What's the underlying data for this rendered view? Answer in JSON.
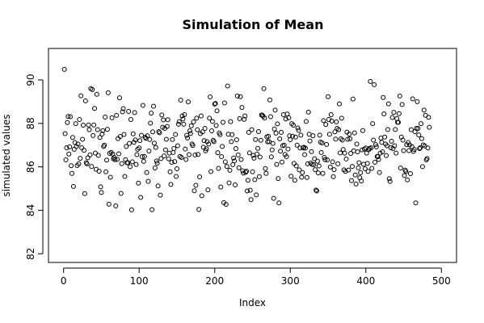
{
  "chart_data": {
    "type": "scatter",
    "title": "Simulation of Mean",
    "xlabel": "Index",
    "ylabel": "simulated values",
    "xlim": [
      0,
      500
    ],
    "ylim": [
      82,
      91
    ],
    "xticks": [
      0,
      100,
      200,
      300,
      400,
      500
    ],
    "yticks": [
      82,
      84,
      86,
      88,
      90
    ],
    "grid": false,
    "legend": "none",
    "series": [
      {
        "values": [
          90.49,
          87.53,
          86.32,
          86.88,
          88.04,
          88.32,
          86.59,
          86.92,
          88.31,
          86.05,
          85.7,
          87.35,
          85.1,
          86.81,
          87.12,
          87.99,
          86.94,
          86.06,
          87.05,
          86.14,
          88.18,
          86.39,
          89.27,
          86.88,
          87.27,
          87.92,
          86.76,
          84.77,
          89.04,
          86.19,
          86.14,
          86.42,
          87.93,
          87.71,
          86.55,
          89.6,
          86.02,
          89.56,
          87.44,
          87.93,
          88.69,
          86.63,
          85.89,
          89.34,
          87.71,
          86.53,
          85.8,
          87.35,
          85.08,
          84.82,
          87.51,
          87.67,
          86.94,
          87.0,
          88.29,
          85.77,
          86.31,
          87.73,
          89.41,
          84.28,
          86.62,
          85.52,
          86.66,
          88.26,
          86.59,
          86.37,
          86.43,
          86.33,
          84.2,
          88.37,
          86.34,
          87.3,
          86.6,
          89.18,
          87.4,
          84.78,
          86.15,
          88.53,
          88.68,
          87.49,
          85.56,
          86.33,
          86.94,
          86.19,
          86.19,
          88.55,
          87.08,
          86.01,
          88.18,
          84.02,
          86.23,
          87.52,
          87.13,
          88.5,
          87.24,
          86.11,
          86.56,
          86.81,
          85.25,
          86.87,
          87.21,
          84.59,
          87.45,
          86.47,
          88.83,
          86.25,
          86.48,
          87.36,
          87.31,
          85.74,
          87.43,
          85.33,
          86.73,
          87.26,
          88.01,
          88.47,
          84.03,
          87.61,
          88.79,
          87.09,
          85.95,
          86.89,
          86.27,
          86.17,
          85.12,
          87.62,
          87.57,
          84.7,
          86.38,
          88.39,
          87.82,
          88.16,
          86.5,
          87.77,
          86.78,
          87.27,
          87.86,
          88.17,
          86.37,
          86.63,
          85.77,
          85.19,
          86.21,
          87.26,
          86.66,
          86.84,
          86.24,
          87.49,
          85.56,
          85.91,
          86.97,
          87.96,
          88.08,
          86.48,
          89.07,
          86.43,
          88.34,
          88.2,
          87.96,
          88.4,
          86.82,
          86.34,
          87.45,
          87.33,
          88.99,
          86.56,
          87.66,
          87.54,
          87.89,
          87.05,
          86.98,
          88.07,
          84.9,
          86.55,
          85.15,
          88.24,
          87.71,
          86.57,
          84.04,
          85.54,
          87.53,
          88.34,
          84.67,
          87.61,
          86.9,
          87.21,
          87.77,
          86.74,
          86.83,
          87.16,
          84.94,
          87.05,
          88.24,
          89.22,
          85.78,
          87.66,
          88.09,
          87.22,
          87.16,
          88.89,
          88.92,
          87.9,
          88.58,
          86.65,
          85.93,
          87.56,
          87.48,
          85.07,
          86.47,
          86.94,
          88.05,
          84.35,
          88.94,
          86.23,
          84.27,
          86.02,
          89.72,
          87.5,
          85.26,
          85.84,
          88.08,
          87.16,
          87.48,
          86.1,
          86.41,
          86.27,
          85.17,
          86.84,
          87.25,
          89.26,
          86.55,
          85.96,
          88.22,
          89.23,
          86.34,
          88.73,
          85.82,
          85.71,
          88.19,
          88.34,
          85.75,
          85.8,
          84.89,
          85.38,
          87.59,
          86.64,
          84.92,
          84.49,
          87.71,
          85.77,
          86.53,
          86.4,
          85.41,
          87.26,
          84.71,
          86.59,
          86.85,
          87.62,
          85.55,
          86.45,
          87.22,
          88.39,
          88.38,
          88.33,
          89.6,
          88.25,
          85.92,
          85.7,
          87.38,
          87.15,
          87.41,
          87.16,
          89.08,
          88.31,
          86.46,
          86.78,
          87.08,
          84.55,
          87.74,
          88.61,
          87.55,
          86.11,
          87.98,
          85.46,
          84.34,
          87.29,
          86.72,
          87.59,
          86.22,
          86.97,
          88.4,
          87.0,
          86.57,
          88.2,
          86.47,
          88.43,
          86.82,
          88.26,
          87.43,
          87.25,
          85.57,
          87.99,
          87.41,
          87.92,
          86.16,
          85.38,
          87.37,
          86.04,
          87.0,
          87.79,
          87.68,
          85.86,
          86.87,
          87.46,
          85.52,
          85.74,
          86.87,
          86.9,
          86.56,
          86.86,
          88.09,
          85.51,
          86.14,
          88.52,
          87.5,
          87.19,
          86.17,
          86.7,
          86.11,
          87.43,
          86.1,
          86.37,
          85.87,
          84.93,
          84.89,
          86.26,
          85.72,
          86.04,
          87.46,
          87.14,
          86.66,
          87.1,
          85.7,
          88.13,
          86.43,
          86.33,
          87.95,
          87.03,
          86.32,
          89.23,
          88.18,
          87.5,
          85.99,
          88.4,
          88.11,
          86.23,
          85.55,
          85.87,
          87.61,
          87.28,
          88.07,
          87.77,
          86.14,
          87.71,
          88.9,
          86.64,
          87.29,
          88.24,
          87.23,
          86.8,
          85.86,
          86.63,
          85.79,
          86.36,
          87.6,
          87.27,
          85.85,
          87.51,
          87.29,
          86.62,
          85.37,
          86.02,
          89.12,
          86.74,
          87.56,
          85.63,
          85.21,
          87.05,
          86.69,
          85.96,
          86.19,
          85.5,
          85.73,
          85.35,
          86.78,
          87.67,
          86.12,
          86.82,
          85.91,
          86.87,
          86.63,
          86.16,
          85.79,
          86.8,
          86.85,
          89.93,
          86.88,
          85.93,
          87.99,
          87.23,
          89.78,
          86.21,
          87.02,
          86.92,
          86.48,
          86.47,
          86.34,
          85.74,
          86.63,
          87.33,
          87.13,
          86.69,
          89.19,
          88.44,
          87.37,
          87.05,
          86.52,
          86.97,
          87.72,
          88.9,
          85.45,
          85.33,
          86.88,
          87.18,
          88.27,
          86.84,
          88.51,
          86.97,
          87.72,
          86.63,
          88.22,
          88.05,
          88.05,
          88.45,
          89.26,
          85.95,
          87.37,
          88.87,
          87.23,
          86.75,
          85.6,
          85.85,
          85.79,
          87.02,
          85.4,
          87.12,
          86.75,
          87.01,
          85.69,
          87.71,
          86.93,
          89.13,
          86.71,
          86.8,
          87.62,
          84.34,
          87.77,
          89.0,
          87.77,
          87.47,
          86.84,
          86.88,
          87.99,
          87.3,
          86.01,
          87.01,
          88.61,
          86.96,
          88.37,
          86.32,
          86.38,
          86.87,
          88.28,
          87.82
        ]
      }
    ]
  }
}
